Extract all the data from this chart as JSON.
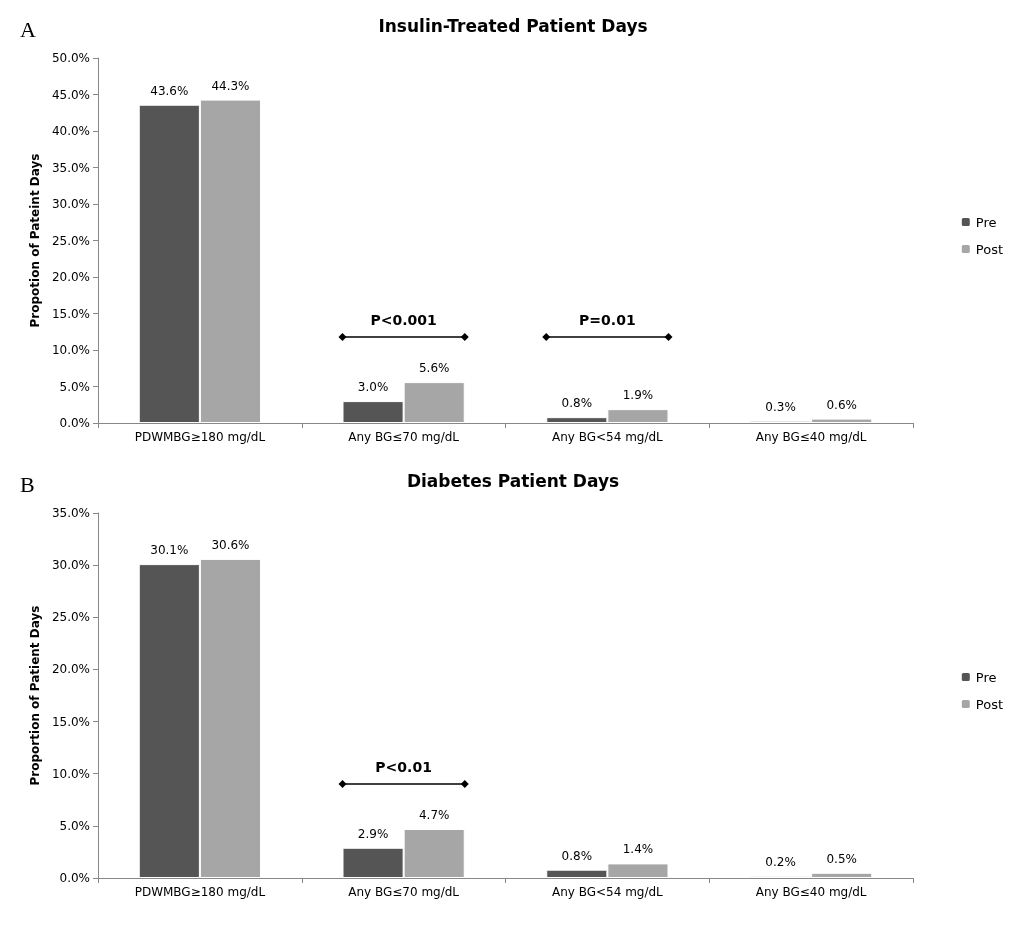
{
  "chart_data": [
    {
      "type": "bar",
      "title": "Insulin-Treated Patient Days",
      "ylabel": "Propotion of Pateint Days",
      "categories": [
        "PDWMBG≥180 mg/dL",
        "Any BG≤70 mg/dL",
        "Any BG<54 mg/dL",
        "Any BG≤40 mg/dL"
      ],
      "series": [
        {
          "name": "Pre",
          "color": "#555555",
          "values": [
            43.6,
            3.0,
            0.8,
            0.3
          ],
          "value_labels": [
            "43.6%",
            "3.0%",
            "0.8%",
            "0.3%"
          ]
        },
        {
          "name": "Post",
          "color": "#a6a6a6",
          "values": [
            44.3,
            5.6,
            1.9,
            0.6
          ],
          "value_labels": [
            "44.3%",
            "5.6%",
            "1.9%",
            "0.6%"
          ]
        }
      ],
      "ylim": [
        0,
        50
      ],
      "yticks": [
        {
          "value": 0,
          "label": "0.0%"
        },
        {
          "value": 5,
          "label": "5.0%"
        },
        {
          "value": 10,
          "label": "10.0%"
        },
        {
          "value": 15,
          "label": "15.0%"
        },
        {
          "value": 20,
          "label": "20.0%"
        },
        {
          "value": 25,
          "label": "25.0%"
        },
        {
          "value": 30,
          "label": "30.0%"
        },
        {
          "value": 35,
          "label": "35.0%"
        },
        {
          "value": 40,
          "label": "40.0%"
        },
        {
          "value": 45,
          "label": "45.0%"
        },
        {
          "value": 50,
          "label": "50.0%"
        }
      ],
      "annotations": [
        "A",
        "P<0.001",
        "P=0.01"
      ],
      "grid": false,
      "legend": "right"
    },
    {
      "type": "bar",
      "title": "Diabetes Patient Days",
      "ylabel": "Proportion of Patient Days",
      "categories": [
        "PDWMBG≥180 mg/dL",
        "Any BG≤70 mg/dL",
        "Any BG<54 mg/dL",
        "Any BG≤40 mg/dL"
      ],
      "series": [
        {
          "name": "Pre",
          "color": "#555555",
          "values": [
            30.1,
            2.9,
            0.8,
            0.2
          ],
          "value_labels": [
            "30.1%",
            "2.9%",
            "0.8%",
            "0.2%"
          ]
        },
        {
          "name": "Post",
          "color": "#a6a6a6",
          "values": [
            30.6,
            4.7,
            1.4,
            0.5
          ],
          "value_labels": [
            "30.6%",
            "4.7%",
            "1.4%",
            "0.5%"
          ]
        }
      ],
      "ylim": [
        0,
        35
      ],
      "yticks": [
        {
          "value": 0,
          "label": "0.0%"
        },
        {
          "value": 5,
          "label": "5.0%"
        },
        {
          "value": 10,
          "label": "10.0%"
        },
        {
          "value": 15,
          "label": "15.0%"
        },
        {
          "value": 20,
          "label": "20.0%"
        },
        {
          "value": 25,
          "label": "25.0%"
        },
        {
          "value": 30,
          "label": "30.0%"
        },
        {
          "value": 35,
          "label": "35.0%"
        }
      ],
      "annotations": [
        "B",
        "P<0.01"
      ],
      "grid": false,
      "legend": "right"
    }
  ]
}
